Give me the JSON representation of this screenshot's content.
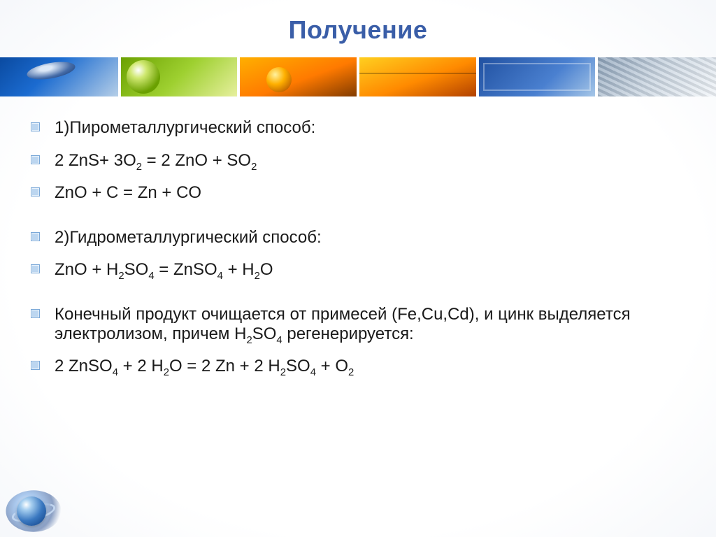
{
  "title": "Получение",
  "title_color": "#3a5ea8",
  "title_fontsize": 36,
  "body_fontsize": 24,
  "body_color": "#1a1a1a",
  "bullet_fill": "#bcd6f0",
  "bullet_border": "#7aa8d8",
  "background": "#ffffff",
  "banner_segments": [
    {
      "name": "mouse",
      "gradient": [
        "#0a4aa0",
        "#1b6bd0",
        "#b8d0e8"
      ]
    },
    {
      "name": "globe",
      "gradient": [
        "#6aa000",
        "#9ed030",
        "#e8f0a0"
      ]
    },
    {
      "name": "binary",
      "gradient": [
        "#ffb000",
        "#ff7a00",
        "#803a00"
      ]
    },
    {
      "name": "hand",
      "gradient": [
        "#ffd020",
        "#ff8a00",
        "#b04000"
      ]
    },
    {
      "name": "chip",
      "gradient": [
        "#2050a0",
        "#4a80d0",
        "#a8c8e8"
      ]
    },
    {
      "name": "keyboard",
      "gradient": [
        "#8aa0b8",
        "#c8d4e0",
        "#f0f4f8"
      ]
    }
  ],
  "lines": [
    {
      "text": "1)Пирометаллургический способ:",
      "spaced": false
    },
    {
      "text": "2 ZnS+ 3O₂ = 2 ZnO + SO₂",
      "spaced": false
    },
    {
      "text": "ZnO  + C = Zn + CO",
      "spaced": false
    },
    {
      "text": "2)Гидрометаллургический способ:",
      "spaced": true
    },
    {
      "text": "ZnO + H₂SO₄ = ZnSO₄ + H₂O",
      "spaced": false
    },
    {
      "text": "Конечный продукт очищается от примесей (Fe,Cu,Cd), и цинк выделяется электролизом, причем H₂SO₄ регенерируется:",
      "spaced": true
    },
    {
      "text": "2 ZnSO₄ + 2 H₂O = 2 Zn + 2 H₂SO₄ + O₂",
      "spaced": false
    }
  ]
}
